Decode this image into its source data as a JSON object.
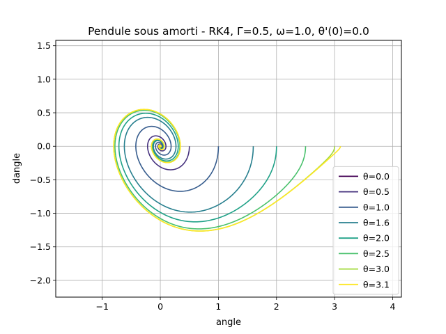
{
  "chart_data": {
    "type": "line",
    "title": "Pendule sous amorti - RK4, Γ=0.5, ω=1.0, θ'(0)=0.0",
    "xlabel": "angle",
    "ylabel": "dangle",
    "xlim": [
      -1.8,
      4.15
    ],
    "ylim": [
      -2.25,
      1.58
    ],
    "xticks": [
      -1,
      0,
      1,
      2,
      3,
      4
    ],
    "xtick_labels": [
      "−1",
      "0",
      "1",
      "2",
      "3",
      "4"
    ],
    "yticks": [
      -2.0,
      -1.5,
      -1.0,
      -0.5,
      0.0,
      0.5,
      1.0,
      1.5
    ],
    "ytick_labels": [
      "−2.0",
      "−1.5",
      "−1.0",
      "−0.5",
      "0.0",
      "0.5",
      "1.0",
      "1.5"
    ],
    "grid": true,
    "legend_position": "lower right",
    "model": {
      "gamma": 0.5,
      "omega": 1.0,
      "initial_velocity": 0.0
    },
    "series": [
      {
        "name": "θ=0.0",
        "theta0": 0.0,
        "color": "#440154"
      },
      {
        "name": "θ=0.5",
        "theta0": 0.5,
        "color": "#46327e"
      },
      {
        "name": "θ=1.0",
        "theta0": 1.0,
        "color": "#365c8d"
      },
      {
        "name": "θ=1.6",
        "theta0": 1.6,
        "color": "#277f8e"
      },
      {
        "name": "θ=2.0",
        "theta0": 2.0,
        "color": "#1fa187"
      },
      {
        "name": "θ=2.5",
        "theta0": 2.5,
        "color": "#4ac16d"
      },
      {
        "name": "θ=3.0",
        "theta0": 3.0,
        "color": "#a0da39"
      },
      {
        "name": "θ=3.1",
        "theta0": 3.1,
        "color": "#fde725"
      }
    ]
  }
}
